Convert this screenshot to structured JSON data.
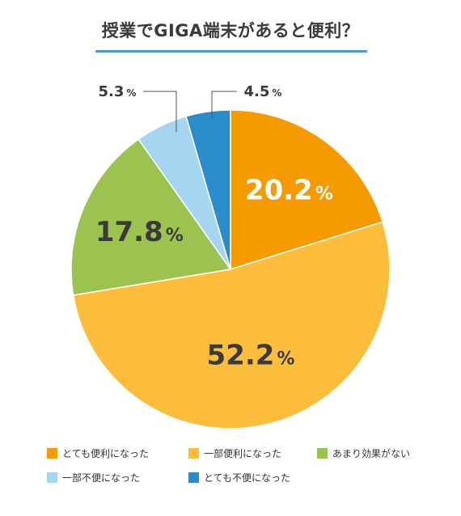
{
  "title": "授業でGIGA端末があると便利？",
  "colors": {
    "title_rule": "#4a9ad8",
    "label_text": "#ffffff",
    "label_text_dark": "#3a3a3a",
    "leader": "#555555"
  },
  "chart_data": {
    "type": "pie",
    "title": "授業でGIGA端末があると便利？",
    "slices": [
      {
        "label": "とても便利になった",
        "value": 20.2,
        "display": "20.2",
        "color": "#f59a00"
      },
      {
        "label": "一部便利になった",
        "value": 52.2,
        "display": "52.2",
        "color": "#fbbd3a"
      },
      {
        "label": "あまり効果がない",
        "value": 17.8,
        "display": "17.8",
        "color": "#9cc34f"
      },
      {
        "label": "一部不便になった",
        "value": 5.3,
        "display": "5.3",
        "color": "#a5d5f1"
      },
      {
        "label": "とても不便になった",
        "value": 4.5,
        "display": "4.5",
        "color": "#2a8cc8"
      }
    ],
    "unit": "%",
    "start_angle": "12 o'clock",
    "direction": "clockwise",
    "legend_position": "bottom"
  }
}
